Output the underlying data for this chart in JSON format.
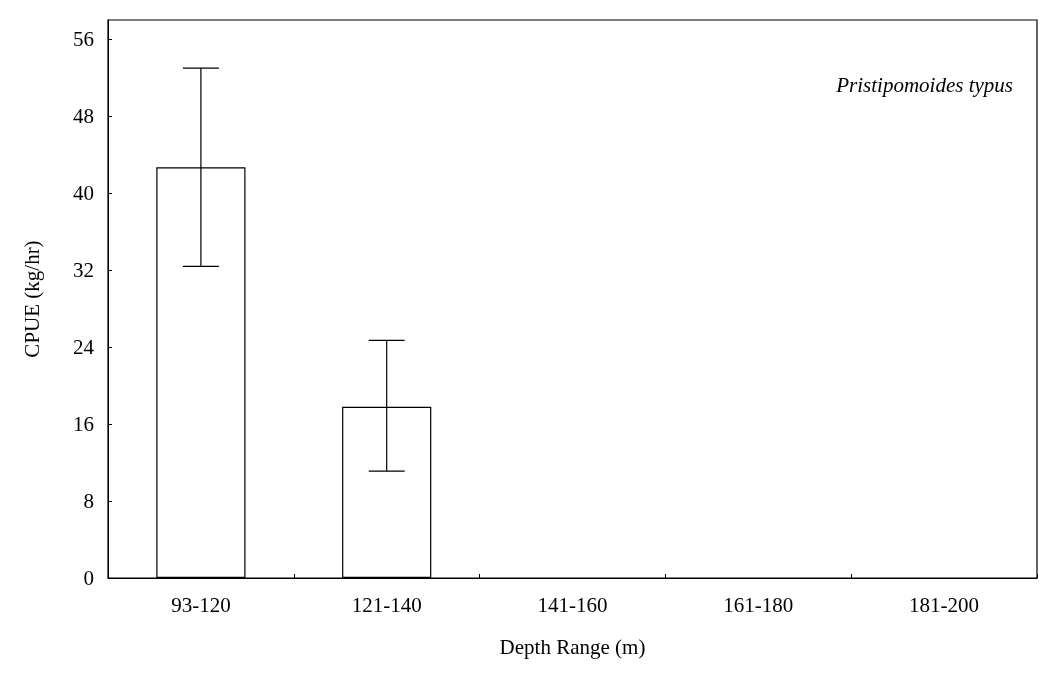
{
  "chart_data": {
    "type": "bar",
    "xlabel": "Depth Range (m)",
    "ylabel": "CPUE (kg/hr)",
    "categories": [
      "93-120",
      "121-140",
      "141-160",
      "161-180",
      "181-200"
    ],
    "values": [
      42.7,
      17.8,
      0,
      0,
      0
    ],
    "errors": [
      [
        32.4,
        53.0
      ],
      [
        11.1,
        24.7
      ],
      null,
      null,
      null
    ],
    "color": "#ffffff",
    "ylim": [
      0,
      58
    ],
    "yticks": [
      0,
      8,
      16,
      24,
      32,
      40,
      48,
      56
    ],
    "grid": false,
    "annotations": [
      "Pristipomoides typus"
    ]
  }
}
